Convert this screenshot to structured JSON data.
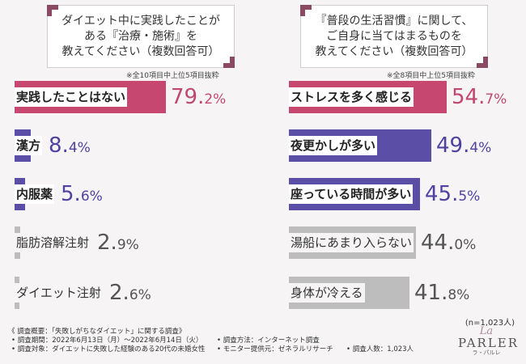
{
  "colors": {
    "pink": "#c6476f",
    "purple": "#5a4ea6",
    "gray": "#bdbdbd",
    "pink_text": "#c04870",
    "purple_text": "#4e43a0",
    "gray_text": "#555555"
  },
  "left": {
    "question": [
      "ダイエット中に実践したことが",
      "ある『治療・施術』を",
      "教えてください（複数回答可）"
    ],
    "note": "※全10項目中上位5項目抜粋",
    "chart_data": {
      "type": "bar",
      "categories": [
        "実践したことはない",
        "漢方",
        "内服薬",
        "脂肪溶解注射",
        "ダイエット注射"
      ],
      "values": [
        79.2,
        8.4,
        5.6,
        2.9,
        2.6
      ],
      "value_labels": [
        [
          "79.",
          "2%"
        ],
        [
          "8.",
          "4%"
        ],
        [
          "5.",
          "6%"
        ],
        [
          "2.",
          "9%"
        ],
        [
          "2.",
          "6%"
        ]
      ],
      "styles": [
        "pink",
        "purple",
        "purple",
        "gray",
        "gray"
      ],
      "ylim": [
        0,
        100
      ]
    }
  },
  "right": {
    "question": [
      "『普段の生活習慣』に関して、",
      "ご自身に当てはまるものを",
      "教えてください（複数回答可）"
    ],
    "note": "※全8項目中上位5項目抜粋",
    "chart_data": {
      "type": "bar",
      "categories": [
        "ストレスを多く感じる",
        "夜更かしが多い",
        "座っている時間が多い",
        "湯船にあまり入らない",
        "身体が冷える"
      ],
      "values": [
        54.7,
        49.4,
        45.5,
        44.0,
        41.8
      ],
      "value_labels": [
        [
          "54.",
          "7%"
        ],
        [
          "49.",
          "4%"
        ],
        [
          "45.",
          "5%"
        ],
        [
          "44.",
          "0%"
        ],
        [
          "41.",
          "8%"
        ]
      ],
      "styles": [
        "pink",
        "purple",
        "purple",
        "gray",
        "gray"
      ],
      "ylim": [
        0,
        65
      ]
    }
  },
  "sample": "(n=1,023人)",
  "footer": {
    "title": "《 調査概要：「失敗しがちなダイエット」に関する調査》",
    "period": "• 調査期間：2022年6月13日（月）〜2022年6月14日（火）",
    "target": "• 調査対象：ダイエットに失敗した経験のある20代の未婚女性",
    "method": "• 調査方法：インターネット調査",
    "provider": "• モニター提供元：ゼネラルリサーチ",
    "count": "• 調査人数：1,023人"
  },
  "logo": {
    "la": "La",
    "name": "PARLER",
    "sub": "ラ・パルレ"
  }
}
